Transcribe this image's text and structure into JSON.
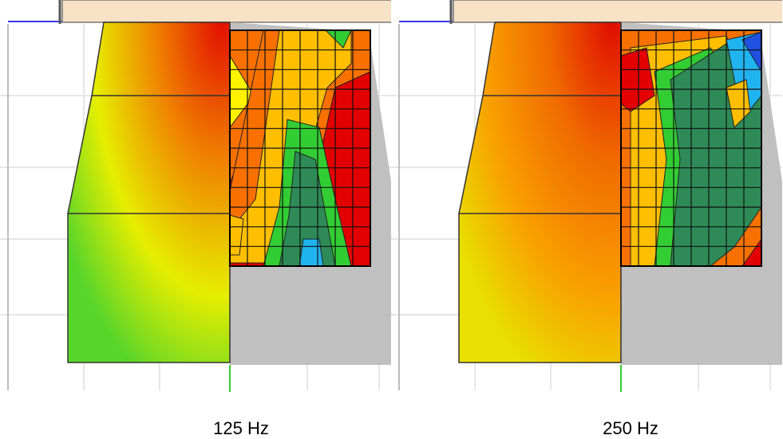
{
  "panels": [
    {
      "label": "125 Hz",
      "colors": {
        "sim_top": "#e20f00",
        "sim_mid": "#f08000",
        "sim_low": "#e6ee00",
        "sim_bottom": "#58d52a",
        "meas": [
          "#e20000",
          "#f87000",
          "#ffbf00",
          "#fff200",
          "#32cd32",
          "#2e8b57",
          "#1fb4f0"
        ]
      }
    },
    {
      "label": "250 Hz",
      "colors": {
        "sim_top": "#e00d00",
        "sim_mid": "#f06a00",
        "sim_low": "#f9a000",
        "sim_bottom": "#e8e000",
        "meas": [
          "#e20000",
          "#f87000",
          "#ffbf00",
          "#32cd32",
          "#2e8b57",
          "#1fb4f0",
          "#2050e0"
        ]
      }
    }
  ],
  "palette": {
    "grid": "#e6e6e6",
    "room_top": "#f7e2c6",
    "backdrop": "#c0c0c0",
    "axis_blue": "#3a3ae8",
    "axis_green": "#33cc33"
  }
}
